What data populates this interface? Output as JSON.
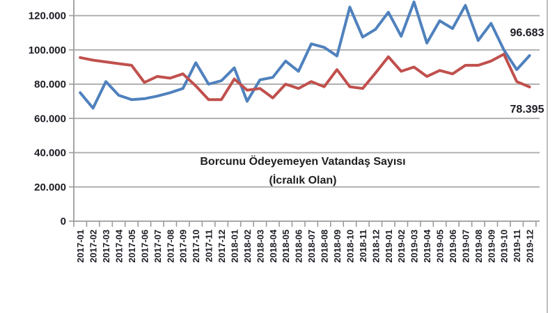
{
  "chart_data": {
    "type": "line",
    "title_line1": "Borcunu Ödeyemeyen Vatandaş Sayısı",
    "title_line2": "(İcralık Olan)",
    "grid": true,
    "legend": "none",
    "ylim": [
      0,
      129000
    ],
    "y_axis": {
      "tick_labels": [
        "0",
        "20.000",
        "40.000",
        "60.000",
        "80.000",
        "100.000",
        "120.000"
      ],
      "tick_values": [
        0,
        20000,
        40000,
        60000,
        80000,
        100000,
        120000
      ]
    },
    "categories": [
      "2017-01",
      "2017-02",
      "2017-03",
      "2017-04",
      "2017-05",
      "2017-06",
      "2017-07",
      "2017-08",
      "2017-09",
      "2017-10",
      "2017-11",
      "2017-12",
      "2018-01",
      "2018-02",
      "2018-03",
      "2018-04",
      "2018-05",
      "2018-06",
      "2018-07",
      "2018-08",
      "2018-09",
      "2018-10",
      "2018-11",
      "2018-12",
      "2019-01",
      "2019-02",
      "2019-03",
      "2019-04",
      "2019-05",
      "2019-06",
      "2019-07",
      "2019-08",
      "2019-09",
      "2019-10",
      "2019-11",
      "2019-12"
    ],
    "series": [
      {
        "name": "series-blue",
        "color": "#4f81bd",
        "values": [
          75000,
          66000,
          81500,
          73500,
          71000,
          71500,
          73000,
          75000,
          77500,
          92500,
          80000,
          82000,
          89500,
          70000,
          82500,
          84000,
          93500,
          87500,
          103500,
          101500,
          96500,
          125000,
          107500,
          112000,
          122000,
          108000,
          128000,
          104000,
          117000,
          112500,
          126000,
          105500,
          115500,
          100000,
          88500,
          96683
        ]
      },
      {
        "name": "series-red",
        "color": "#c0504d",
        "values": [
          95500,
          94000,
          93000,
          92000,
          91000,
          81000,
          84500,
          83500,
          86000,
          79000,
          71000,
          71000,
          83000,
          76500,
          77500,
          72000,
          80000,
          77500,
          81500,
          78500,
          88500,
          78500,
          77500,
          86500,
          96000,
          87500,
          90000,
          84500,
          88000,
          86000,
          91000,
          91000,
          93500,
          97500,
          81500,
          78395
        ]
      }
    ],
    "end_labels": [
      {
        "series": "series-blue",
        "text": "96.683"
      },
      {
        "series": "series-red",
        "text": "78.395"
      }
    ]
  }
}
